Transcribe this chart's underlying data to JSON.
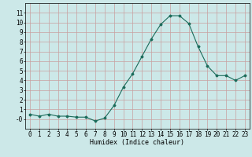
{
  "x": [
    0,
    1,
    2,
    3,
    4,
    5,
    6,
    7,
    8,
    9,
    10,
    11,
    12,
    13,
    14,
    15,
    16,
    17,
    18,
    19,
    20,
    21,
    22,
    23
  ],
  "y": [
    0.5,
    0.3,
    0.5,
    0.3,
    0.3,
    0.2,
    0.2,
    -0.2,
    0.1,
    1.4,
    3.3,
    4.7,
    6.5,
    8.3,
    9.8,
    10.7,
    10.7,
    9.9,
    7.5,
    5.5,
    4.5,
    4.5,
    4.0,
    4.5
  ],
  "line_color": "#1a6b5a",
  "marker": "D",
  "marker_size": 1.5,
  "linewidth": 0.8,
  "xlabel": "Humidex (Indice chaleur)",
  "xlabel_fontsize": 6,
  "xlim": [
    -0.5,
    23.5
  ],
  "ylim": [
    -1,
    12
  ],
  "yticks": [
    0,
    1,
    2,
    3,
    4,
    5,
    6,
    7,
    8,
    9,
    10,
    11
  ],
  "ytick_labels": [
    "-0",
    "1",
    "2",
    "3",
    "4",
    "5",
    "6",
    "7",
    "8",
    "9",
    "10",
    "11"
  ],
  "xticks": [
    0,
    1,
    2,
    3,
    4,
    5,
    6,
    7,
    8,
    9,
    10,
    11,
    12,
    13,
    14,
    15,
    16,
    17,
    18,
    19,
    20,
    21,
    22,
    23
  ],
  "grid_color": "#c8a0a0",
  "background_color": "#cce8e8",
  "tick_fontsize": 5.5
}
